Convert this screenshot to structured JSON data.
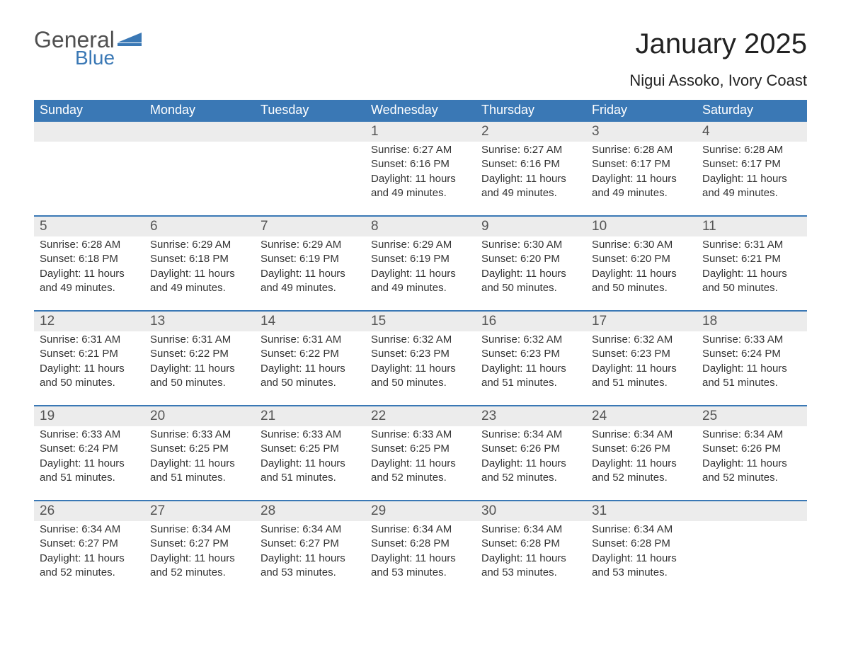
{
  "logo": {
    "general": "General",
    "blue": "Blue",
    "accent_color": "#3a78b5",
    "text_color": "#505050"
  },
  "title": {
    "month": "January 2025",
    "location": "Nigui Assoko, Ivory Coast",
    "title_fontsize": 40,
    "location_fontsize": 22,
    "title_color": "#222222"
  },
  "calendar": {
    "type": "table",
    "header_bg": "#3a78b5",
    "header_text_color": "#ffffff",
    "daynum_bg": "#ececec",
    "daynum_border_color": "#3a78b5",
    "body_text_color": "#333333",
    "weekday_fontsize": 18,
    "daynum_fontsize": 19,
    "body_fontsize": 15,
    "columns": [
      "Sunday",
      "Monday",
      "Tuesday",
      "Wednesday",
      "Thursday",
      "Friday",
      "Saturday"
    ],
    "weeks": [
      [
        null,
        null,
        null,
        {
          "day": "1",
          "sunrise": "Sunrise: 6:27 AM",
          "sunset": "Sunset: 6:16 PM",
          "daylight": "Daylight: 11 hours and 49 minutes."
        },
        {
          "day": "2",
          "sunrise": "Sunrise: 6:27 AM",
          "sunset": "Sunset: 6:16 PM",
          "daylight": "Daylight: 11 hours and 49 minutes."
        },
        {
          "day": "3",
          "sunrise": "Sunrise: 6:28 AM",
          "sunset": "Sunset: 6:17 PM",
          "daylight": "Daylight: 11 hours and 49 minutes."
        },
        {
          "day": "4",
          "sunrise": "Sunrise: 6:28 AM",
          "sunset": "Sunset: 6:17 PM",
          "daylight": "Daylight: 11 hours and 49 minutes."
        }
      ],
      [
        {
          "day": "5",
          "sunrise": "Sunrise: 6:28 AM",
          "sunset": "Sunset: 6:18 PM",
          "daylight": "Daylight: 11 hours and 49 minutes."
        },
        {
          "day": "6",
          "sunrise": "Sunrise: 6:29 AM",
          "sunset": "Sunset: 6:18 PM",
          "daylight": "Daylight: 11 hours and 49 minutes."
        },
        {
          "day": "7",
          "sunrise": "Sunrise: 6:29 AM",
          "sunset": "Sunset: 6:19 PM",
          "daylight": "Daylight: 11 hours and 49 minutes."
        },
        {
          "day": "8",
          "sunrise": "Sunrise: 6:29 AM",
          "sunset": "Sunset: 6:19 PM",
          "daylight": "Daylight: 11 hours and 49 minutes."
        },
        {
          "day": "9",
          "sunrise": "Sunrise: 6:30 AM",
          "sunset": "Sunset: 6:20 PM",
          "daylight": "Daylight: 11 hours and 50 minutes."
        },
        {
          "day": "10",
          "sunrise": "Sunrise: 6:30 AM",
          "sunset": "Sunset: 6:20 PM",
          "daylight": "Daylight: 11 hours and 50 minutes."
        },
        {
          "day": "11",
          "sunrise": "Sunrise: 6:31 AM",
          "sunset": "Sunset: 6:21 PM",
          "daylight": "Daylight: 11 hours and 50 minutes."
        }
      ],
      [
        {
          "day": "12",
          "sunrise": "Sunrise: 6:31 AM",
          "sunset": "Sunset: 6:21 PM",
          "daylight": "Daylight: 11 hours and 50 minutes."
        },
        {
          "day": "13",
          "sunrise": "Sunrise: 6:31 AM",
          "sunset": "Sunset: 6:22 PM",
          "daylight": "Daylight: 11 hours and 50 minutes."
        },
        {
          "day": "14",
          "sunrise": "Sunrise: 6:31 AM",
          "sunset": "Sunset: 6:22 PM",
          "daylight": "Daylight: 11 hours and 50 minutes."
        },
        {
          "day": "15",
          "sunrise": "Sunrise: 6:32 AM",
          "sunset": "Sunset: 6:23 PM",
          "daylight": "Daylight: 11 hours and 50 minutes."
        },
        {
          "day": "16",
          "sunrise": "Sunrise: 6:32 AM",
          "sunset": "Sunset: 6:23 PM",
          "daylight": "Daylight: 11 hours and 51 minutes."
        },
        {
          "day": "17",
          "sunrise": "Sunrise: 6:32 AM",
          "sunset": "Sunset: 6:23 PM",
          "daylight": "Daylight: 11 hours and 51 minutes."
        },
        {
          "day": "18",
          "sunrise": "Sunrise: 6:33 AM",
          "sunset": "Sunset: 6:24 PM",
          "daylight": "Daylight: 11 hours and 51 minutes."
        }
      ],
      [
        {
          "day": "19",
          "sunrise": "Sunrise: 6:33 AM",
          "sunset": "Sunset: 6:24 PM",
          "daylight": "Daylight: 11 hours and 51 minutes."
        },
        {
          "day": "20",
          "sunrise": "Sunrise: 6:33 AM",
          "sunset": "Sunset: 6:25 PM",
          "daylight": "Daylight: 11 hours and 51 minutes."
        },
        {
          "day": "21",
          "sunrise": "Sunrise: 6:33 AM",
          "sunset": "Sunset: 6:25 PM",
          "daylight": "Daylight: 11 hours and 51 minutes."
        },
        {
          "day": "22",
          "sunrise": "Sunrise: 6:33 AM",
          "sunset": "Sunset: 6:25 PM",
          "daylight": "Daylight: 11 hours and 52 minutes."
        },
        {
          "day": "23",
          "sunrise": "Sunrise: 6:34 AM",
          "sunset": "Sunset: 6:26 PM",
          "daylight": "Daylight: 11 hours and 52 minutes."
        },
        {
          "day": "24",
          "sunrise": "Sunrise: 6:34 AM",
          "sunset": "Sunset: 6:26 PM",
          "daylight": "Daylight: 11 hours and 52 minutes."
        },
        {
          "day": "25",
          "sunrise": "Sunrise: 6:34 AM",
          "sunset": "Sunset: 6:26 PM",
          "daylight": "Daylight: 11 hours and 52 minutes."
        }
      ],
      [
        {
          "day": "26",
          "sunrise": "Sunrise: 6:34 AM",
          "sunset": "Sunset: 6:27 PM",
          "daylight": "Daylight: 11 hours and 52 minutes."
        },
        {
          "day": "27",
          "sunrise": "Sunrise: 6:34 AM",
          "sunset": "Sunset: 6:27 PM",
          "daylight": "Daylight: 11 hours and 52 minutes."
        },
        {
          "day": "28",
          "sunrise": "Sunrise: 6:34 AM",
          "sunset": "Sunset: 6:27 PM",
          "daylight": "Daylight: 11 hours and 53 minutes."
        },
        {
          "day": "29",
          "sunrise": "Sunrise: 6:34 AM",
          "sunset": "Sunset: 6:28 PM",
          "daylight": "Daylight: 11 hours and 53 minutes."
        },
        {
          "day": "30",
          "sunrise": "Sunrise: 6:34 AM",
          "sunset": "Sunset: 6:28 PM",
          "daylight": "Daylight: 11 hours and 53 minutes."
        },
        {
          "day": "31",
          "sunrise": "Sunrise: 6:34 AM",
          "sunset": "Sunset: 6:28 PM",
          "daylight": "Daylight: 11 hours and 53 minutes."
        },
        null
      ]
    ]
  }
}
